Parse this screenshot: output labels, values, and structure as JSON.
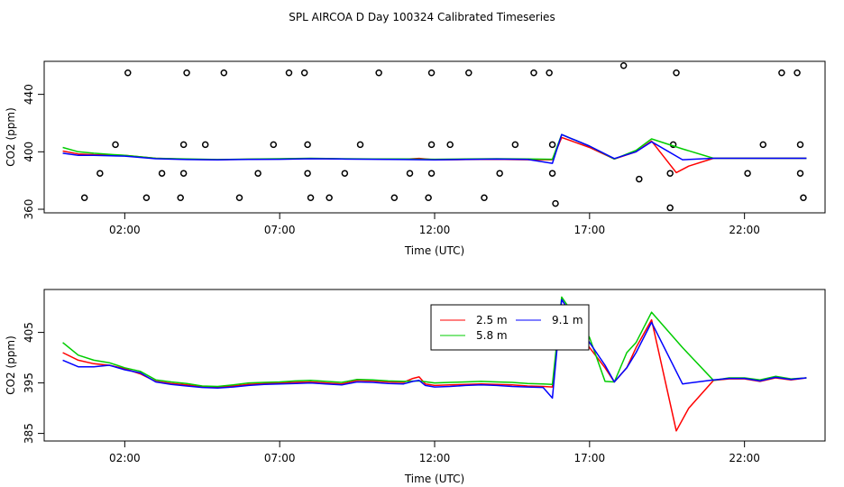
{
  "chart_data": [
    {
      "type": "scatter+line",
      "title": "SPL AIRCOA D  Day 100324  Calibrated Timeseries",
      "xlabel": "Time (UTC)",
      "ylabel": "CO2 (ppm)",
      "xlim": [
        -0.6,
        24.6
      ],
      "ylim": [
        357.5,
        463
      ],
      "xticks": [
        2,
        7,
        12,
        17,
        22
      ],
      "xtick_labels": [
        "02:00",
        "07:00",
        "12:00",
        "17:00",
        "22:00"
      ],
      "yticks": [
        360,
        400,
        440
      ],
      "ytick_labels": [
        "360",
        "400",
        "440"
      ],
      "grid": false,
      "points": [
        [
          0.7,
          368
        ],
        [
          1.2,
          385
        ],
        [
          1.7,
          405
        ],
        [
          2.1,
          455
        ],
        [
          2.7,
          368
        ],
        [
          3.2,
          385
        ],
        [
          3.8,
          368
        ],
        [
          3.9,
          385
        ],
        [
          3.9,
          405
        ],
        [
          4.0,
          455
        ],
        [
          4.6,
          405
        ],
        [
          5.2,
          455
        ],
        [
          5.7,
          368
        ],
        [
          6.3,
          385
        ],
        [
          6.8,
          405
        ],
        [
          7.3,
          455
        ],
        [
          7.8,
          455
        ],
        [
          7.9,
          405
        ],
        [
          7.9,
          385
        ],
        [
          8.0,
          368
        ],
        [
          8.6,
          368
        ],
        [
          9.1,
          385
        ],
        [
          9.6,
          405
        ],
        [
          10.2,
          455
        ],
        [
          10.7,
          368
        ],
        [
          11.2,
          385
        ],
        [
          11.8,
          368
        ],
        [
          11.9,
          385
        ],
        [
          11.9,
          405
        ],
        [
          11.9,
          455
        ],
        [
          12.5,
          405
        ],
        [
          13.1,
          455
        ],
        [
          13.6,
          368
        ],
        [
          14.1,
          385
        ],
        [
          14.6,
          405
        ],
        [
          15.2,
          455
        ],
        [
          15.7,
          455
        ],
        [
          15.8,
          405
        ],
        [
          15.8,
          385
        ],
        [
          15.9,
          364
        ],
        [
          18.1,
          460
        ],
        [
          18.6,
          381
        ],
        [
          19.6,
          361
        ],
        [
          19.6,
          385
        ],
        [
          19.7,
          405
        ],
        [
          19.8,
          455
        ],
        [
          22.1,
          385
        ],
        [
          22.6,
          405
        ],
        [
          23.2,
          455
        ],
        [
          23.7,
          455
        ],
        [
          23.8,
          405
        ],
        [
          23.8,
          385
        ],
        [
          23.9,
          368
        ]
      ],
      "series": [
        {
          "name": "2.5 m",
          "color": "#ff0000",
          "x": [
            0,
            0.5,
            1,
            2,
            3,
            4,
            5,
            6,
            7,
            8,
            9,
            10,
            11,
            11.5,
            12,
            13,
            14,
            15,
            15.8,
            16.1,
            17,
            17.8,
            18.5,
            19,
            19.8,
            20.2,
            21,
            22,
            23,
            24
          ],
          "y": [
            400.5,
            398.5,
            398,
            397.5,
            395.5,
            394.8,
            394.5,
            394.8,
            395,
            395.3,
            395,
            395,
            394.8,
            395.4,
            394.5,
            394.6,
            394.8,
            394.5,
            394.5,
            410,
            403,
            395,
            400,
            407.5,
            385.5,
            390,
            395.5,
            395.5,
            395.5,
            395.5
          ]
        },
        {
          "name": "5.8 m",
          "color": "#00cc00",
          "x": [
            0,
            0.5,
            1,
            2,
            3,
            4,
            5,
            6,
            7,
            8,
            9,
            10,
            11,
            12,
            13,
            14,
            15,
            15.8,
            16.1,
            17,
            17.8,
            18.5,
            19,
            20,
            21,
            22,
            23,
            24
          ],
          "y": [
            403,
            400,
            399,
            397.5,
            395.5,
            395,
            394.6,
            394.9,
            395.2,
            395.5,
            395.2,
            395,
            395,
            394.8,
            395,
            395.2,
            395,
            394.8,
            412,
            404,
            395,
            401,
            409,
            402,
            395.5,
            395.5,
            395.5,
            395.5
          ]
        },
        {
          "name": "9.1 m",
          "color": "#0000ff",
          "x": [
            0,
            0.5,
            1,
            2,
            3,
            4,
            5,
            6,
            7,
            8,
            9,
            10,
            11,
            12,
            13,
            14,
            15,
            15.8,
            16.1,
            17,
            17.8,
            18.5,
            19,
            20,
            21,
            22,
            23,
            24
          ],
          "y": [
            399,
            397.5,
            397.5,
            397,
            395.2,
            394.6,
            394.4,
            394.7,
            394.8,
            395.2,
            395,
            394.8,
            394.6,
            394.4,
            394.7,
            394.9,
            394.7,
            392,
            412,
            404,
            395.3,
            400,
            407,
            394.5,
            395.5,
            395.5,
            395.5,
            395.5
          ]
        }
      ]
    },
    {
      "type": "line",
      "title": "",
      "xlabel": "Time (UTC)",
      "ylabel": "CO2 (ppm)",
      "xlim": [
        -0.6,
        24.6
      ],
      "ylim": [
        383.5,
        413.5
      ],
      "xticks": [
        2,
        7,
        12,
        17,
        22
      ],
      "xtick_labels": [
        "02:00",
        "07:00",
        "12:00",
        "17:00",
        "22:00"
      ],
      "yticks": [
        385,
        395,
        405
      ],
      "ytick_labels": [
        "385",
        "395",
        "405"
      ],
      "grid": false,
      "legend": {
        "placement": "top-center",
        "entries": [
          "2.5 m",
          "5.8 m",
          "9.1 m"
        ]
      },
      "series": [
        {
          "name": "2.5 m",
          "color": "#ff0000",
          "x": [
            0,
            0.5,
            1,
            1.5,
            2,
            2.5,
            3,
            3.5,
            4,
            4.5,
            5,
            5.5,
            6,
            6.5,
            7,
            7.5,
            8,
            8.5,
            9,
            9.5,
            10,
            10.5,
            11,
            11.3,
            11.5,
            11.7,
            12,
            12.5,
            13,
            13.5,
            14,
            14.5,
            15,
            15.5,
            15.8,
            16.1,
            17,
            17.5,
            17.8,
            18.2,
            18.5,
            19,
            19.8,
            20.2,
            21,
            21.5,
            22,
            22.5,
            23,
            23.5,
            24
          ],
          "y": [
            401,
            399.5,
            398.8,
            398.5,
            397.8,
            396.8,
            395.3,
            394.9,
            394.6,
            394.2,
            394.1,
            394.4,
            394.7,
            394.9,
            395,
            395.1,
            395.2,
            395,
            394.8,
            395.5,
            395.4,
            395.2,
            395.1,
            395.9,
            396.2,
            394.8,
            394.5,
            394.6,
            394.7,
            394.8,
            394.7,
            394.6,
            394.4,
            394.3,
            394.2,
            410,
            402,
            398,
            395.2,
            398,
            402,
            407.5,
            385.5,
            390,
            395.5,
            395.8,
            395.8,
            395.3,
            396,
            395.6,
            396
          ]
        },
        {
          "name": "5.8 m",
          "color": "#00cc00",
          "x": [
            0,
            0.5,
            1,
            1.5,
            2,
            2.5,
            3,
            3.5,
            4,
            4.5,
            5,
            5.5,
            6,
            6.5,
            7,
            7.5,
            8,
            8.5,
            9,
            9.5,
            10,
            10.5,
            11,
            11.5,
            12,
            12.5,
            13,
            13.5,
            14,
            14.5,
            15,
            15.5,
            15.8,
            16.1,
            17,
            17.5,
            17.8,
            18.2,
            18.5,
            19,
            20,
            21,
            21.5,
            22,
            22.5,
            23,
            23.5,
            24
          ],
          "y": [
            403,
            400.5,
            399.5,
            399,
            398,
            397.3,
            395.6,
            395.2,
            394.9,
            394.4,
            394.3,
            394.6,
            395,
            395.1,
            395.2,
            395.4,
            395.5,
            395.3,
            395.1,
            395.7,
            395.6,
            395.4,
            395.3,
            395.4,
            395,
            395.1,
            395.2,
            395.3,
            395.2,
            395.1,
            394.9,
            394.8,
            394.7,
            412,
            404,
            395.3,
            395.2,
            401,
            403,
            409,
            402,
            395.5,
            396,
            396,
            395.6,
            396.3,
            395.8,
            396
          ]
        },
        {
          "name": "9.1 m",
          "color": "#0000ff",
          "x": [
            0,
            0.5,
            1,
            1.5,
            2,
            2.5,
            3,
            3.5,
            4,
            4.5,
            5,
            5.5,
            6,
            6.5,
            7,
            7.5,
            8,
            8.5,
            9,
            9.5,
            10,
            10.5,
            11,
            11.3,
            11.5,
            11.7,
            12,
            12.5,
            13,
            13.5,
            14,
            14.5,
            15,
            15.5,
            15.8,
            16.1,
            17,
            17.5,
            17.8,
            18.2,
            18.5,
            19,
            20,
            21,
            21.5,
            22,
            22.5,
            23,
            23.5,
            24
          ],
          "y": [
            399.5,
            398.2,
            398.2,
            398.5,
            397.6,
            397,
            395.2,
            394.7,
            394.4,
            394.1,
            394,
            394.2,
            394.5,
            394.7,
            394.8,
            394.9,
            395,
            394.8,
            394.6,
            395.2,
            395.1,
            394.9,
            394.8,
            395.3,
            395.5,
            394.5,
            394.2,
            394.3,
            394.5,
            394.6,
            394.5,
            394.3,
            394.2,
            394.1,
            392,
            411.5,
            403,
            398.5,
            395.2,
            398,
            401,
            407,
            394.8,
            395.6,
            395.9,
            395.9,
            395.4,
            396.1,
            395.7,
            396
          ]
        }
      ]
    }
  ]
}
